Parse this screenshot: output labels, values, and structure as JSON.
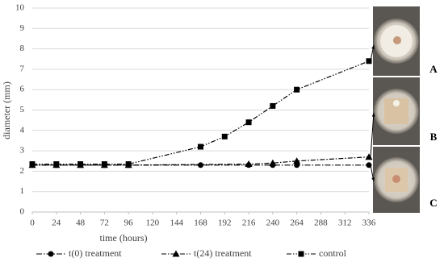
{
  "chart_data": {
    "type": "line",
    "x_label": "time (hours)",
    "y_label": "diameter (mm)",
    "xlim": [
      0,
      336
    ],
    "xticks": [
      0,
      24,
      48,
      72,
      96,
      120,
      144,
      168,
      192,
      216,
      240,
      264,
      288,
      312,
      336
    ],
    "ylim": [
      0,
      10
    ],
    "yticks": [
      0,
      1,
      2,
      3,
      4,
      5,
      6,
      7,
      8,
      9,
      10
    ],
    "grid": true,
    "series": [
      {
        "name": "t(0) treatment",
        "color": "#000000",
        "marker": "circle",
        "dash": "7 2 1.5 2",
        "x": [
          0,
          24,
          48,
          72,
          96,
          168,
          216,
          240,
          264,
          336
        ],
        "values": [
          2.3,
          2.3,
          2.3,
          2.3,
          2.3,
          2.3,
          2.3,
          2.3,
          2.3,
          2.3
        ]
      },
      {
        "name": "t(24) treatment",
        "color": "#000000",
        "marker": "triangle",
        "dash": "6 2 1.5 2",
        "x": [
          0,
          24,
          48,
          72,
          96,
          216,
          240,
          264,
          336
        ],
        "values": [
          2.3,
          2.3,
          2.3,
          2.3,
          2.3,
          2.35,
          2.4,
          2.5,
          2.7
        ]
      },
      {
        "name": "control",
        "color": "#000000",
        "marker": "square",
        "dash": "6 2 1.5 2 1.5 2",
        "x": [
          0,
          24,
          48,
          72,
          96,
          168,
          192,
          216,
          240,
          264,
          336
        ],
        "values": [
          2.35,
          2.35,
          2.35,
          2.35,
          2.35,
          3.2,
          3.7,
          4.4,
          5.2,
          6.0,
          7.4
        ]
      }
    ],
    "panels": [
      "A",
      "B",
      "C"
    ]
  }
}
